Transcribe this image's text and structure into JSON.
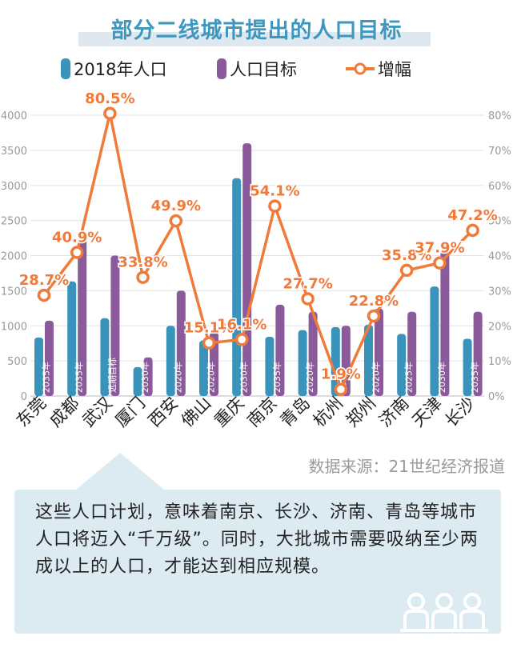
{
  "title": "部分二线城市提出的人口目标",
  "source": "数据来源：21世纪经济报道",
  "note": "这些人口计划，意味着南京、长沙、济南、青岛等城市人口将迈入“千万级”。同时，大批城市需要吸纳至少两成以上的人口，才能达到相应规模。",
  "colors": {
    "pop2018": "#3a93ba",
    "target": "#8b5a9a",
    "growth": "#f07a3a",
    "title": "#3d97be",
    "grid": "#e3e3e3"
  },
  "icons": {
    "people": "people-icon"
  },
  "chart_data": {
    "type": "bar",
    "title": "部分二线城市提出的人口目标",
    "categories": [
      "东莞",
      "成都",
      "武汉",
      "厦门",
      "西安",
      "佛山",
      "重庆",
      "南京",
      "青岛",
      "杭州",
      "郑州",
      "济南",
      "天津",
      "长沙"
    ],
    "target_years": [
      "2035年",
      "2035年",
      "远期目标",
      "2030年",
      "2020年",
      "2020年",
      "2030年",
      "2035年",
      "2020年",
      "2020",
      "2020年",
      "2025年",
      "2030年",
      "2035年"
    ],
    "series": [
      {
        "name": "2018年人口",
        "axis": "left",
        "values": [
          834,
          1633,
          1108,
          411,
          1000,
          790,
          3102,
          844,
          939,
          981,
          1014,
          884,
          1560,
          815
        ]
      },
      {
        "name": "人口目标",
        "axis": "left",
        "values": [
          1073,
          2300,
          2000,
          550,
          1500,
          910,
          3600,
          1300,
          1200,
          1000,
          1245,
          1200,
          2153,
          1200
        ]
      },
      {
        "name": "增幅",
        "type": "line",
        "axis": "right",
        "values": [
          28.7,
          40.9,
          80.5,
          33.8,
          49.9,
          15.1,
          16.1,
          54.1,
          27.7,
          1.9,
          22.8,
          35.8,
          37.9,
          47.2
        ],
        "labels": [
          "28.7%",
          "40.9%",
          "80.5%",
          "33.8%",
          "49.9%",
          "15.1%",
          "16.1%",
          "54.1%",
          "27.7%",
          "1.9%",
          "22.8%",
          "35.8%",
          "37.9%",
          "47.2%"
        ]
      }
    ],
    "yleft_ticks": [
      "0",
      "500",
      "1000",
      "1500",
      "2000",
      "2500",
      "3000",
      "3500",
      "4000"
    ],
    "yright_ticks": [
      "0%",
      "10%",
      "20%",
      "30%",
      "40%",
      "50%",
      "60%",
      "70%",
      "80%"
    ],
    "ylim_left": [
      0,
      4000
    ],
    "ylim_right": [
      0,
      80
    ],
    "grid": true,
    "legend_position": "top"
  }
}
